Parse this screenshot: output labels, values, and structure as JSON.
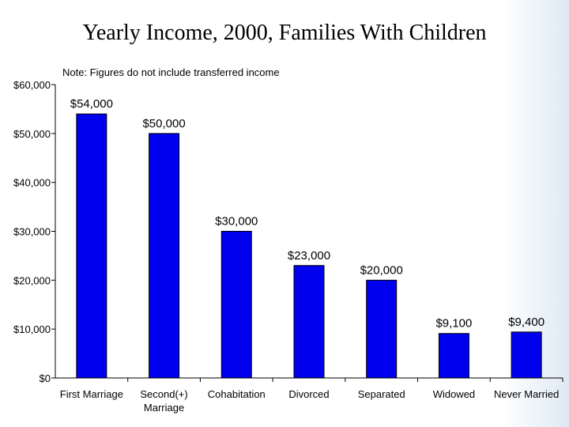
{
  "chart_data": {
    "type": "bar",
    "title": "Yearly Income, 2000, Families With Children",
    "subtitle": "Note: Figures do not include transferred income",
    "categories": [
      "First Marriage",
      "Second(+) Marriage",
      "Cohabitation",
      "Divorced",
      "Separated",
      "Widowed",
      "Never Married"
    ],
    "category_lines": [
      [
        "First Marriage"
      ],
      [
        "Second(+)",
        "Marriage"
      ],
      [
        "Cohabitation"
      ],
      [
        "Divorced"
      ],
      [
        "Separated"
      ],
      [
        "Widowed"
      ],
      [
        "Never Married"
      ]
    ],
    "values": [
      54000,
      50000,
      30000,
      23000,
      20000,
      9100,
      9400
    ],
    "data_labels": [
      "$54,000",
      "$50,000",
      "$30,000",
      "$23,000",
      "$20,000",
      "$9,100",
      "$9,400"
    ],
    "ylim": [
      0,
      60000
    ],
    "yticks": [
      0,
      10000,
      20000,
      30000,
      40000,
      50000,
      60000
    ],
    "ytick_labels": [
      "$0",
      "$10,000",
      "$20,000",
      "$30,000",
      "$40,000",
      "$50,000",
      "$60,000"
    ],
    "xlabel": "",
    "ylabel": "",
    "grid": false,
    "colors": {
      "bar": "#0000ee",
      "bar_edge": "#000000",
      "axis": "#000000"
    }
  }
}
